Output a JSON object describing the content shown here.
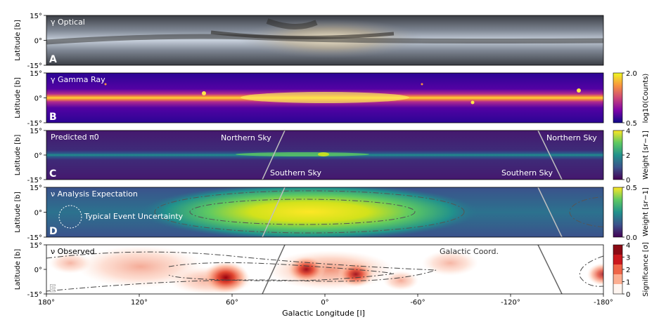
{
  "chart_data": {
    "type": "heatmap",
    "xlabel": "Galactic Longitude [l]",
    "xticks": [
      "180°",
      "120°",
      "60°",
      "0°",
      "-60°",
      "-120°",
      "-180°"
    ],
    "xtick_values": [
      180,
      120,
      60,
      0,
      -60,
      -120,
      -180
    ],
    "xlim": [
      180,
      -180
    ],
    "ylabel": "Latitude [b]",
    "yticks": [
      "15°",
      "0°",
      "-15°"
    ],
    "ytick_values": [
      15,
      0,
      -15
    ],
    "ylim": [
      -15,
      15
    ],
    "panels": [
      {
        "letter": "A",
        "title": "γ Optical",
        "colorbar": null
      },
      {
        "letter": "B",
        "title": "γ Gamma Ray",
        "colorbar": {
          "label": "log10(Counts)",
          "ticks": [
            "2.0",
            "0.5"
          ],
          "range": [
            0.5,
            2.0
          ],
          "colormap": "plasma"
        }
      },
      {
        "letter": "C",
        "title": "Predicted π0",
        "colorbar": {
          "label": "Weight [sr−1]",
          "ticks": [
            "4",
            "2",
            "0"
          ],
          "range": [
            0,
            4
          ],
          "colormap": "viridis"
        },
        "annotations": [
          "Northern Sky",
          "Southern Sky",
          "Northern Sky",
          "Southern Sky"
        ]
      },
      {
        "letter": "D",
        "title": "ν Analysis Expectation",
        "colorbar": {
          "label": "Weight [sr−1]",
          "ticks": [
            "0.5",
            "0.0"
          ],
          "range": [
            0.0,
            0.5
          ],
          "colormap": "viridis"
        },
        "annotations": [
          "Typical Event Uncertainty"
        ]
      },
      {
        "letter": "E",
        "title": "ν Observed",
        "colorbar": {
          "label": "Significance [σ]",
          "ticks": [
            "4",
            "3",
            "2",
            "1",
            "0"
          ],
          "range": [
            0,
            4
          ],
          "colormap": "reds"
        },
        "annotations": [
          "Galactic Coord."
        ]
      }
    ],
    "hotspots_E": [
      {
        "l": 64,
        "b": -5,
        "sigma": 3.5
      },
      {
        "l": 12,
        "b": 0,
        "sigma": 2.6
      },
      {
        "l": -20,
        "b": -3,
        "sigma": 2.4
      },
      {
        "l": -180,
        "b": -3,
        "sigma": 2.0
      }
    ],
    "colors": {
      "plasma_low": "#0d0887",
      "plasma_high": "#f0f921",
      "viridis_low": "#440154",
      "viridis_high": "#fde725",
      "reds_low": "#fff5f0",
      "reds_high": "#67000d"
    }
  }
}
